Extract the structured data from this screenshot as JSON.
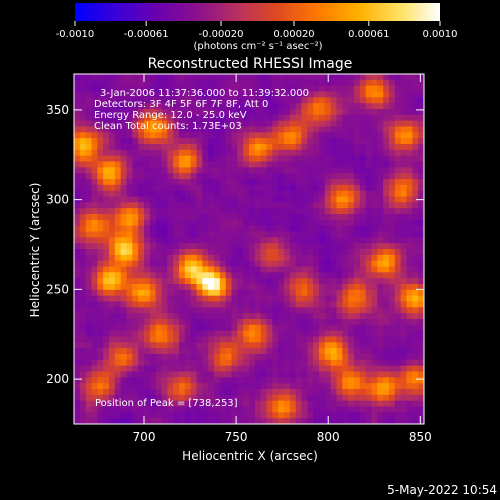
{
  "chart_data": {
    "type": "heatmap",
    "title": "Reconstructed RHESSI Image",
    "xlabel": "Heliocentric X (arcsec)",
    "ylabel": "Heliocentric Y (arcsec)",
    "xlim": [
      662,
      852
    ],
    "ylim": [
      175,
      370
    ],
    "x_ticks": [
      700,
      750,
      800,
      850
    ],
    "y_ticks": [
      200,
      250,
      300,
      350
    ],
    "grid": false,
    "colorbar": {
      "orientation": "horizontal",
      "placement": "top",
      "range": [
        -0.001,
        0.001
      ],
      "tick_values": [
        -0.001,
        -0.00061,
        -0.0002,
        0.0002,
        0.00061,
        0.001
      ],
      "tick_labels": [
        "-0.0010",
        "-0.00061",
        "-0.00020",
        "0.00020",
        "0.00061",
        "0.0010"
      ],
      "unit_label": "(photons cm⁻² s⁻¹ asec⁻²)",
      "colormap": [
        "#0000ff",
        "#3a00d8",
        "#6a00b0",
        "#8a1090",
        "#b83060",
        "#e04a20",
        "#ff7a00",
        "#ffb000",
        "#ffe060",
        "#ffffff"
      ]
    },
    "info_lines": [
      "3-Jan-2006 11:37:36.000 to 11:39:32.000",
      "Detectors: 3F 4F 5F 6F 7F 8F, Att 0",
      "Energy Range: 12.0 - 25.0 keV",
      "Clean     Total counts: 1.73E+03"
    ],
    "peak_label": "Position of Peak = [738,253]",
    "peak": [
      738,
      253
    ],
    "sources": [
      {
        "x": 738,
        "y": 253,
        "value": 0.001
      },
      {
        "x": 726,
        "y": 262,
        "value": 0.0007
      },
      {
        "x": 690,
        "y": 272,
        "value": 0.0007
      },
      {
        "x": 682,
        "y": 255,
        "value": 0.0006
      },
      {
        "x": 700,
        "y": 248,
        "value": 0.0005
      },
      {
        "x": 668,
        "y": 330,
        "value": 0.0006
      },
      {
        "x": 682,
        "y": 315,
        "value": 0.0005
      },
      {
        "x": 692,
        "y": 290,
        "value": 0.0004
      },
      {
        "x": 705,
        "y": 340,
        "value": 0.0005
      },
      {
        "x": 722,
        "y": 322,
        "value": 0.0004
      },
      {
        "x": 762,
        "y": 328,
        "value": 0.0004
      },
      {
        "x": 780,
        "y": 335,
        "value": 0.0004
      },
      {
        "x": 795,
        "y": 350,
        "value": 0.0004
      },
      {
        "x": 825,
        "y": 360,
        "value": 0.0004
      },
      {
        "x": 842,
        "y": 335,
        "value": 0.0005
      },
      {
        "x": 840,
        "y": 305,
        "value": 0.0004
      },
      {
        "x": 808,
        "y": 300,
        "value": 0.0004
      },
      {
        "x": 830,
        "y": 265,
        "value": 0.0005
      },
      {
        "x": 846,
        "y": 245,
        "value": 0.0005
      },
      {
        "x": 815,
        "y": 245,
        "value": 0.0004
      },
      {
        "x": 802,
        "y": 215,
        "value": 0.0006
      },
      {
        "x": 812,
        "y": 198,
        "value": 0.0005
      },
      {
        "x": 830,
        "y": 195,
        "value": 0.0004
      },
      {
        "x": 848,
        "y": 200,
        "value": 0.0004
      },
      {
        "x": 775,
        "y": 185,
        "value": 0.0004
      },
      {
        "x": 760,
        "y": 225,
        "value": 0.0004
      },
      {
        "x": 745,
        "y": 213,
        "value": 0.0003
      },
      {
        "x": 710,
        "y": 225,
        "value": 0.0004
      },
      {
        "x": 688,
        "y": 212,
        "value": 0.0003
      },
      {
        "x": 675,
        "y": 196,
        "value": 0.0003
      },
      {
        "x": 672,
        "y": 285,
        "value": 0.0004
      },
      {
        "x": 720,
        "y": 195,
        "value": 0.0003
      },
      {
        "x": 770,
        "y": 270,
        "value": 0.0002
      },
      {
        "x": 787,
        "y": 250,
        "value": 0.0003
      }
    ]
  },
  "timestamp": "5-May-2022 10:54"
}
